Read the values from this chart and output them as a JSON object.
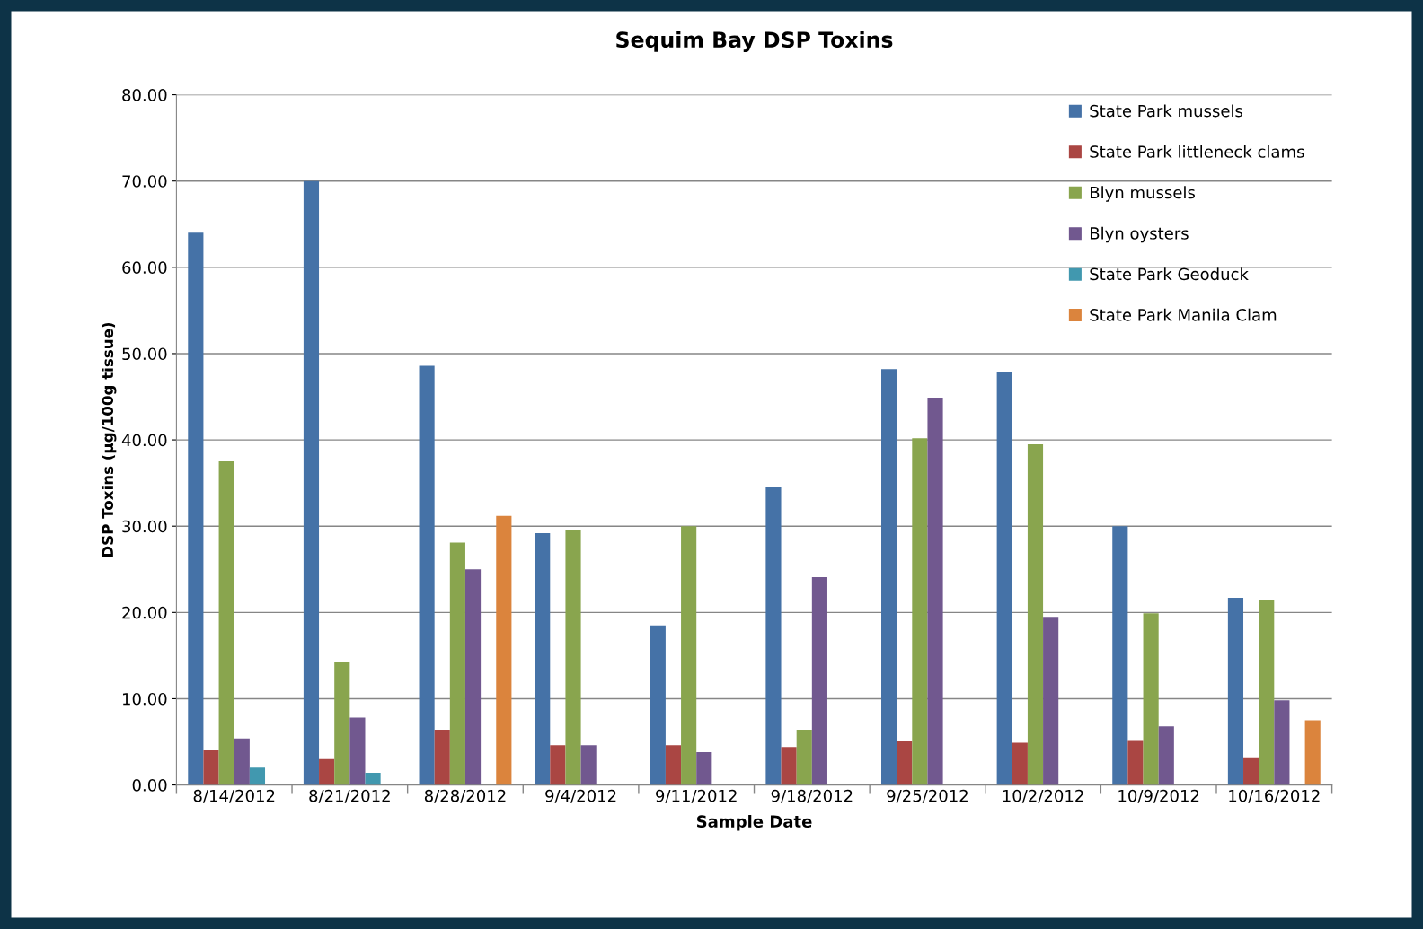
{
  "chart_data": {
    "type": "bar",
    "title": "Sequim Bay DSP Toxins",
    "xlabel": "Sample Date",
    "ylabel": "DSP Toxins (µg/100g tissue)",
    "categories": [
      "8/14/2012",
      "8/21/2012",
      "8/28/2012",
      "9/4/2012",
      "9/11/2012",
      "9/18/2012",
      "9/25/2012",
      "10/2/2012",
      "10/9/2012",
      "10/16/2012"
    ],
    "series": [
      {
        "name": "State Park mussels",
        "color": "#4572a7",
        "values": [
          64.0,
          70.0,
          48.6,
          29.2,
          18.5,
          34.5,
          48.2,
          47.8,
          30.0,
          21.7
        ]
      },
      {
        "name": "State Park littleneck clams",
        "color": "#aa4643",
        "values": [
          4.0,
          3.0,
          6.4,
          4.6,
          4.6,
          4.4,
          5.1,
          4.9,
          5.2,
          3.2
        ]
      },
      {
        "name": "Blyn mussels",
        "color": "#89a54e",
        "values": [
          37.5,
          14.3,
          28.1,
          29.6,
          30.0,
          6.4,
          40.2,
          39.5,
          19.9,
          21.4
        ]
      },
      {
        "name": "Blyn oysters",
        "color": "#71588f",
        "values": [
          5.4,
          7.8,
          25.0,
          4.6,
          3.8,
          24.1,
          44.9,
          19.5,
          6.8,
          9.8
        ]
      },
      {
        "name": "State Park Geoduck",
        "color": "#4198af",
        "values": [
          2.0,
          1.4,
          null,
          null,
          null,
          null,
          null,
          null,
          null,
          null
        ]
      },
      {
        "name": "State Park Manila Clam",
        "color": "#db843d",
        "values": [
          null,
          null,
          31.2,
          null,
          null,
          null,
          null,
          null,
          null,
          7.5
        ]
      }
    ],
    "ylim": [
      0,
      80
    ],
    "yticks": [
      {
        "value": 0,
        "label": "0.00"
      },
      {
        "value": 10,
        "label": "10.00"
      },
      {
        "value": 20,
        "label": "20.00"
      },
      {
        "value": 30,
        "label": "30.00"
      },
      {
        "value": 40,
        "label": "40.00"
      },
      {
        "value": 50,
        "label": "50.00"
      },
      {
        "value": 60,
        "label": "60.00"
      },
      {
        "value": 70,
        "label": "70.00"
      },
      {
        "value": 80,
        "label": "80.00"
      }
    ],
    "grid": "y",
    "legend": "top right"
  }
}
